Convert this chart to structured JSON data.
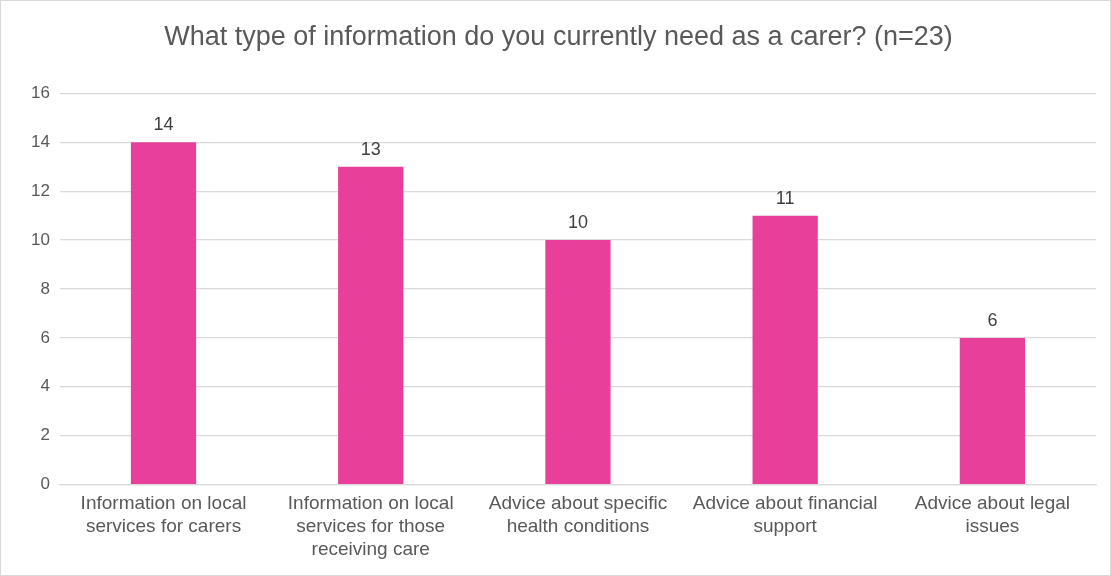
{
  "chart_data": {
    "type": "bar",
    "title": "What type of information do you currently need as a carer? (n=23)",
    "categories": [
      "Information on local services for carers",
      "Information on local services for those receiving care",
      "Advice about specific health conditions",
      "Advice about financial support",
      "Advice about legal issues"
    ],
    "values": [
      14,
      13,
      10,
      11,
      6
    ],
    "color": "#e8409a",
    "ylim": [
      0,
      16
    ],
    "yticks": [
      0,
      2,
      4,
      6,
      8,
      10,
      12,
      14,
      16
    ],
    "grid": "y",
    "legend": false,
    "data_labels": true
  }
}
